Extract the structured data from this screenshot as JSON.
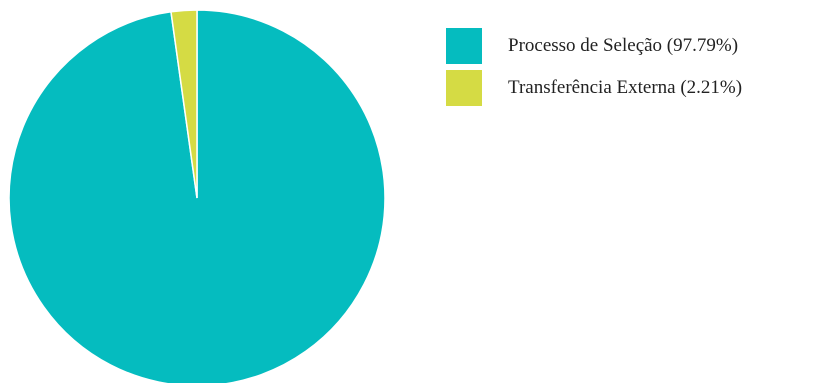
{
  "chart_data": {
    "type": "pie",
    "title": "",
    "legend_position": "right",
    "slices": [
      {
        "label": "Processo de Seleção",
        "value": 97.79,
        "legend_text": "Processo de Seleção (97.79%)",
        "color": "#05BCBF"
      },
      {
        "label": "Transferência Externa",
        "value": 2.21,
        "legend_text": "Transferência Externa (2.21%)",
        "color": "#D5DB44"
      }
    ]
  }
}
